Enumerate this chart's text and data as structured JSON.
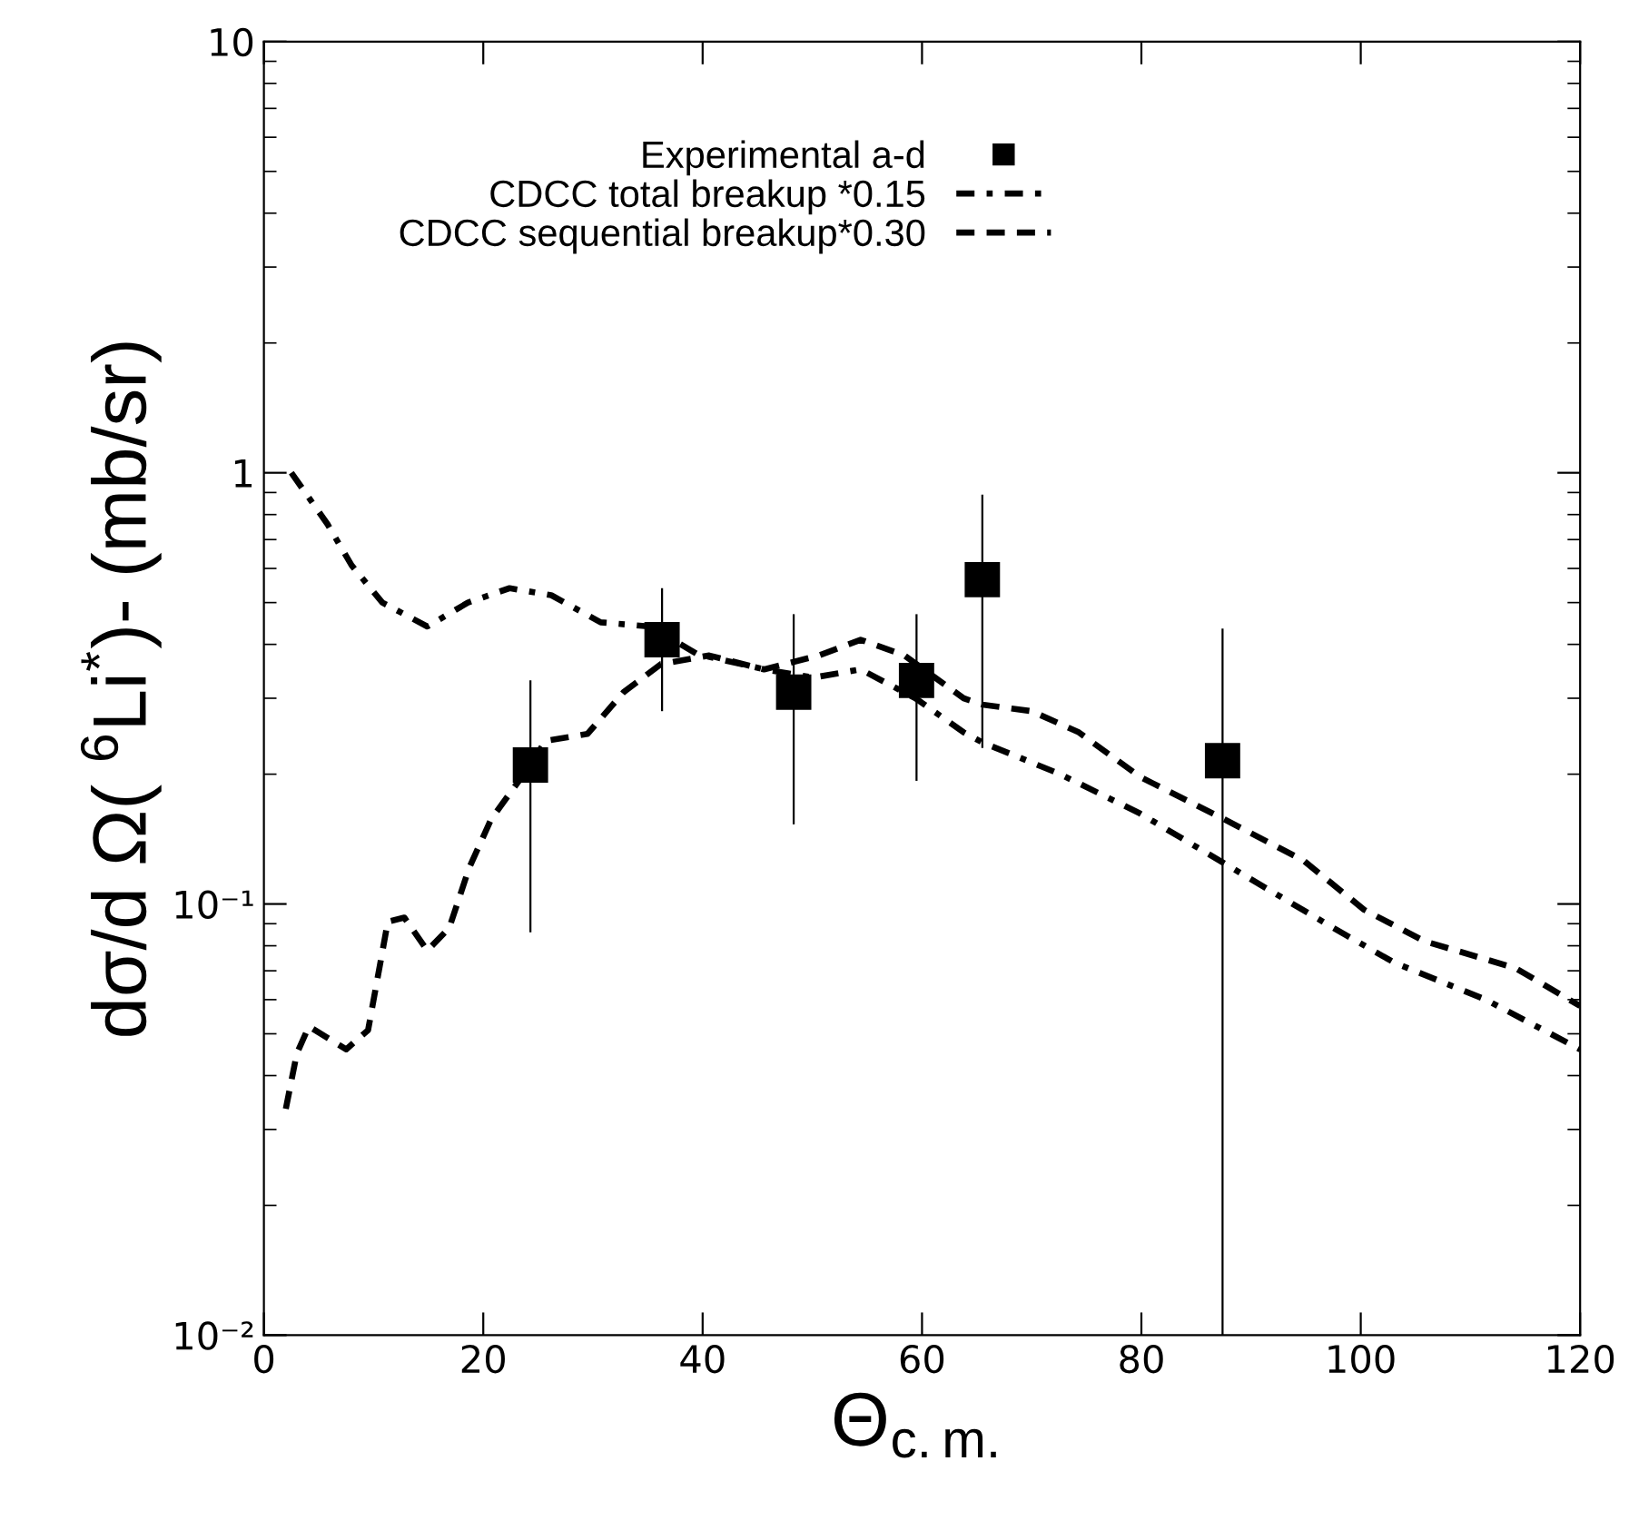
{
  "chart_data": {
    "type": "line",
    "xlabel": "Θ$_{c.m.}$",
    "ylabel": "dσ/d Ω( $^{6}$Li$^{*}$)- (mb/sr)",
    "log": "y",
    "xlim": [
      0,
      120
    ],
    "xticks": [
      0,
      20,
      40,
      60,
      80,
      100,
      120
    ],
    "ylim": [
      0.01,
      10
    ],
    "yticks": [
      {
        "value": 0.01,
        "label": "10⁻²"
      },
      {
        "value": 0.1,
        "label": "10⁻¹"
      },
      {
        "value": 1,
        "label": "1"
      },
      {
        "value": 10,
        "label": "10"
      }
    ],
    "grid": false,
    "legend": "top",
    "series": [
      {
        "name": "Experimental a-d",
        "type": "scatter",
        "marker": "square",
        "color": "#000000",
        "x": [
          24.3,
          36.3,
          48.3,
          59.5,
          65.5,
          87.4
        ],
        "values": [
          0.21,
          0.41,
          0.31,
          0.33,
          0.565,
          0.215
        ],
        "errors": [
          [
            0.086,
            0.33
          ],
          [
            0.28,
            0.54
          ],
          [
            0.153,
            0.47
          ],
          [
            0.193,
            0.47
          ],
          [
            0.23,
            0.89
          ],
          [
            0.01,
            0.435
          ]
        ]
      },
      {
        "name": "CDCC total breakup *0.15",
        "line_style": "dashdot",
        "color": "#000000",
        "x": [
          2.5,
          5.8,
          8,
          10.8,
          14.9,
          18.6,
          22.4,
          26.2,
          30.7,
          35.2,
          39.5,
          45.6,
          50.1,
          54.4,
          59.4,
          63.8,
          65.5,
          72.6,
          79.9,
          87.6,
          97.5,
          103.1,
          111.4,
          120
        ],
        "values": [
          1.0,
          0.76,
          0.61,
          0.5,
          0.44,
          0.5,
          0.54,
          0.52,
          0.45,
          0.44,
          0.38,
          0.35,
          0.335,
          0.35,
          0.3,
          0.25,
          0.237,
          0.2,
          0.162,
          0.124,
          0.088,
          0.073,
          0.06,
          0.046
        ]
      },
      {
        "name": "CDCC sequential breakup*0.30",
        "line_style": "dashed",
        "color": "#000000",
        "x": [
          2,
          3,
          4.1,
          7.5,
          9.5,
          11.3,
          12.8,
          14.9,
          16.9,
          18.7,
          20.7,
          23.5,
          25.7,
          29.5,
          32.8,
          36.2,
          40.6,
          45.6,
          50.6,
          54.4,
          58.4,
          63.8,
          65.5,
          70,
          74.3,
          79.9,
          87.6,
          94.8,
          100.3,
          105.8,
          114.1,
          120
        ],
        "values": [
          0.0335,
          0.045,
          0.052,
          0.046,
          0.051,
          0.091,
          0.093,
          0.078,
          0.088,
          0.121,
          0.157,
          0.197,
          0.239,
          0.248,
          0.31,
          0.36,
          0.377,
          0.35,
          0.377,
          0.41,
          0.377,
          0.3,
          0.29,
          0.28,
          0.25,
          0.197,
          0.157,
          0.126,
          0.097,
          0.082,
          0.071,
          0.058
        ]
      }
    ]
  }
}
